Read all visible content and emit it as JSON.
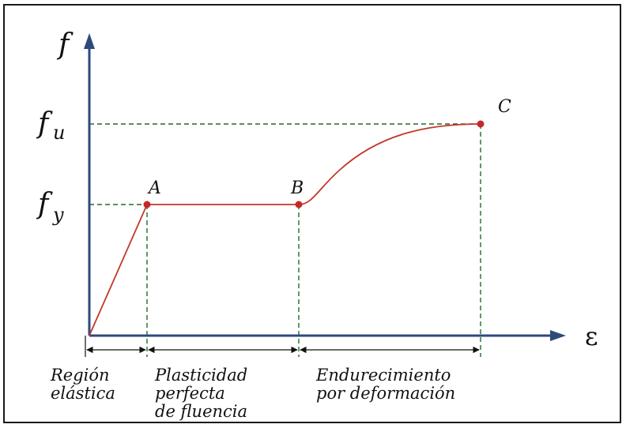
{
  "colors": {
    "axis": "#2f4a7a",
    "curve": "#c0392b",
    "guide": "#1f6b2a",
    "point": "#c62828"
  },
  "axes": {
    "y_label_base": "f",
    "x_label": "ε"
  },
  "ticks": {
    "fu_base": "f",
    "fu_sub": "u",
    "fy_base": "f",
    "fy_sub": "y"
  },
  "points": {
    "A": "A",
    "B": "B",
    "C": "C"
  },
  "regions": {
    "elastic": [
      "Región",
      "elástica"
    ],
    "plastic": [
      "Plasticidad",
      "perfecta",
      "de fluencia"
    ],
    "hardening": [
      "Endurecimiento",
      "por deformación"
    ]
  },
  "icons": {
    "y_arrow": "arrow-up-icon",
    "x_arrow": "arrow-right-icon",
    "dim_arrows": "double-headed-arrow-icon"
  }
}
